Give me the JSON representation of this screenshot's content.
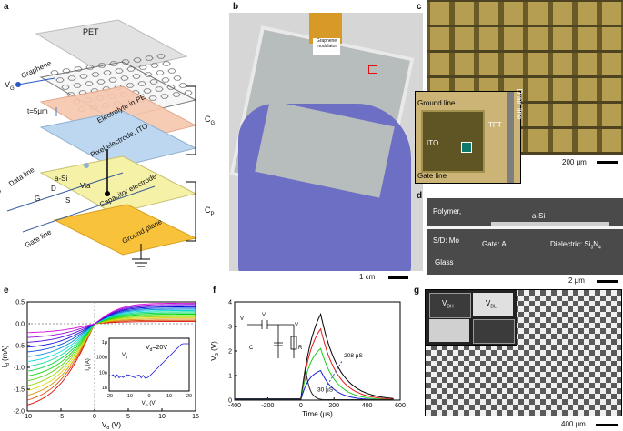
{
  "panel_labels": {
    "a": "a",
    "b": "b",
    "c": "c",
    "d": "d",
    "e": "e",
    "f": "f",
    "g": "g"
  },
  "panel_a": {
    "pet": "PET",
    "graphene": "Graphene",
    "vg": "V",
    "vg_sub": "G",
    "thickness": "t=5μm",
    "electrolyte": "Electrolyte in PE",
    "cg": "C",
    "cg_sub": "G",
    "pixel": "Pixel electrode, ITO",
    "data_line": "Data line",
    "asi": "a-Si",
    "via": "Via",
    "d": "D",
    "g": "G",
    "s": "S",
    "capacitor": "Capacitor electrode",
    "cp": "C",
    "cp_sub": "P",
    "gate_line": "Gate line",
    "ground_plane": "Ground plane"
  },
  "panel_b": {
    "tag_line1": "Graphene",
    "tag_line2": "modulator",
    "scale": "1 cm"
  },
  "panel_c": {
    "ground_line": "Ground line",
    "ito": "ITO",
    "tft": "TFT",
    "drain_line": "Drain line",
    "gate_line": "Gate line",
    "scale": "200 μm"
  },
  "panel_d": {
    "polymer": "Polymer,",
    "asi": "a-Si",
    "sd": "S/D:  Mo",
    "gate": "Gate: Al",
    "dielectric": "Dielectric: Si",
    "dielectric_sub": "3",
    "dielectric_mid": "N",
    "dielectric_sub2": "4",
    "glass": "Glass",
    "scale": "2 μm"
  },
  "panel_g": {
    "vdh": "V",
    "vdh_sub": "DH",
    "vdl": "V",
    "vdl_sub": "DL",
    "scale": "400 μm"
  },
  "chart_data": [
    {
      "type": "line",
      "panel": "e",
      "xlabel": "V",
      "xlabel_sub": "d",
      "xlabel_unit": " (V)",
      "ylabel": "I",
      "ylabel_sub": "d",
      "ylabel_unit": " (mA)",
      "xlim": [
        -10,
        15
      ],
      "ylim": [
        -2.0,
        0.5
      ],
      "xticks": [
        "-10",
        "-5",
        "0",
        "5",
        "10",
        "15"
      ],
      "yticks": [
        "-2.0",
        "-1.5",
        "-1.0",
        "-0.5",
        "0.0",
        "0.5"
      ],
      "series_count": 16,
      "inset": {
        "annotation": "V",
        "annotation_sub": "d",
        "annotation_val": "=20V",
        "xlabel": "V",
        "xlabel_sub": "G",
        "xlabel_unit": " (V)",
        "ylabel": "I",
        "ylabel_sub": "d",
        "ylabel_unit": " (A)",
        "xticks": [
          "-20",
          "-10",
          "0",
          "10",
          "20"
        ],
        "yticks": [
          "1μ",
          "100n",
          "10n",
          "1n"
        ],
        "vg": "V",
        "vg_sub": "g"
      }
    },
    {
      "type": "line",
      "panel": "f",
      "xlabel": "Time (μs)",
      "ylabel": "V",
      "ylabel_sub": "S",
      "ylabel_unit": " (V)",
      "xlim": [
        -400,
        600
      ],
      "ylim": [
        0,
        4
      ],
      "xticks": [
        "-400",
        "-200",
        "0",
        "200",
        "400",
        "600"
      ],
      "yticks": [
        "0",
        "1",
        "2",
        "3",
        "4"
      ],
      "annotations": {
        "t_long": "208 μS",
        "t_short": "30 μS"
      },
      "series": [
        {
          "name": "black",
          "peak": 3.5,
          "color": "#000000"
        },
        {
          "name": "red",
          "peak": 2.9,
          "color": "#e8161a"
        },
        {
          "name": "green",
          "peak": 2.1,
          "color": "#1bd11b"
        },
        {
          "name": "blue",
          "peak": 1.2,
          "color": "#1b1bd8"
        },
        {
          "name": "fast",
          "peak": 1.2,
          "color": "#222222"
        }
      ],
      "schematic": {
        "vd": "V",
        "vd_sub": "D",
        "vg": "V",
        "vg_sub": "G",
        "vs": "V",
        "vs_sub": "s",
        "cs": "C",
        "cs_sub": "s",
        "r": "R"
      }
    }
  ],
  "colors": {
    "pet": "#e6e6e6",
    "electrolyte": "#f6c8b0",
    "ito": "#bcd7ef",
    "cap": "#f4f0a8",
    "ground": "#f7c53c"
  }
}
